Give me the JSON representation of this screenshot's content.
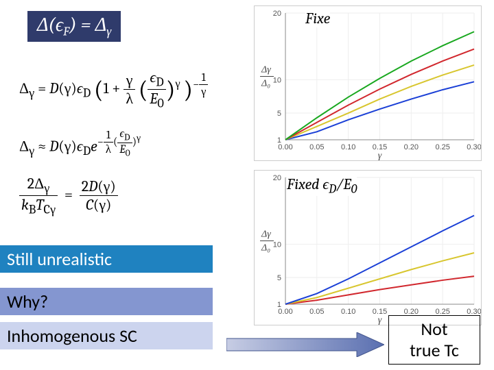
{
  "eq_box": "Δ(ε_F) = Δ_γ",
  "formula1": "Δγ = D(γ)εD (1 + γ/λ (εD/E0)^γ)^(-1/γ)",
  "formula2": "Δγ ≈ D(γ)εD e^{-1/λ (εD/E0)^γ}",
  "formula3": "2Δγ / (kB T_Cγ) = 2D(γ) / C(γ)",
  "banners": {
    "b1": "Still unrealistic",
    "b2": "Why?",
    "b3": "Inhomogenous SC"
  },
  "chart1": {
    "title": "Fixe",
    "x_ticks": [
      "0.00",
      "0.05",
      "0.10",
      "0.15",
      "0.20",
      "0.25",
      "0.30"
    ],
    "y_ticks": [
      "1",
      "5",
      "10",
      "20"
    ],
    "ylabel": "Δγ/Δ0",
    "xlabel": "γ",
    "series": [
      {
        "color": "#1a3fd6",
        "pts": [
          [
            0,
            1
          ],
          [
            0.05,
            2.2
          ],
          [
            0.1,
            4.0
          ],
          [
            0.15,
            5.6
          ],
          [
            0.2,
            7.1
          ],
          [
            0.25,
            8.5
          ],
          [
            0.3,
            9.7
          ]
        ]
      },
      {
        "color": "#d8c62e",
        "pts": [
          [
            0,
            1
          ],
          [
            0.05,
            3.0
          ],
          [
            0.1,
            5.0
          ],
          [
            0.15,
            7.1
          ],
          [
            0.2,
            9.0
          ],
          [
            0.25,
            10.7
          ],
          [
            0.3,
            12.2
          ]
        ]
      },
      {
        "color": "#d1272d",
        "pts": [
          [
            0,
            1
          ],
          [
            0.05,
            3.6
          ],
          [
            0.1,
            6.2
          ],
          [
            0.15,
            8.6
          ],
          [
            0.2,
            10.8
          ],
          [
            0.25,
            12.8
          ],
          [
            0.3,
            14.6
          ]
        ]
      },
      {
        "color": "#19a81f",
        "pts": [
          [
            0,
            1
          ],
          [
            0.05,
            4.3
          ],
          [
            0.1,
            7.4
          ],
          [
            0.15,
            10.2
          ],
          [
            0.2,
            12.8
          ],
          [
            0.25,
            15.1
          ],
          [
            0.3,
            17.2
          ]
        ]
      }
    ],
    "xlim": [
      0,
      0.3
    ],
    "ylim": [
      1,
      20
    ]
  },
  "chart2": {
    "title": "Fixed ε_D/E_0",
    "x_ticks": [
      "0.00",
      "0.05",
      "0.10",
      "0.15",
      "0.20",
      "0.25",
      "0.30"
    ],
    "y_ticks": [
      "1",
      "5",
      "10",
      "20"
    ],
    "ylabel": "Δγ/Δ0",
    "xlabel": "γ",
    "series": [
      {
        "color": "#d1272d",
        "pts": [
          [
            0,
            1
          ],
          [
            0.05,
            1.6
          ],
          [
            0.1,
            2.4
          ],
          [
            0.15,
            3.2
          ],
          [
            0.2,
            3.9
          ],
          [
            0.25,
            4.6
          ],
          [
            0.3,
            5.2
          ]
        ]
      },
      {
        "color": "#d8c62e",
        "pts": [
          [
            0,
            1
          ],
          [
            0.05,
            2.0
          ],
          [
            0.1,
            3.4
          ],
          [
            0.15,
            4.8
          ],
          [
            0.2,
            6.2
          ],
          [
            0.25,
            7.5
          ],
          [
            0.3,
            8.7
          ]
        ]
      },
      {
        "color": "#1a3fd6",
        "pts": [
          [
            0,
            1
          ],
          [
            0.05,
            2.6
          ],
          [
            0.1,
            4.8
          ],
          [
            0.15,
            7.2
          ],
          [
            0.2,
            9.6
          ],
          [
            0.25,
            12.0
          ],
          [
            0.3,
            14.3
          ]
        ]
      }
    ],
    "xlim": [
      0,
      0.3
    ],
    "ylim": [
      1,
      20
    ]
  },
  "not_box": {
    "line1": "Not",
    "line2": "true Tc"
  }
}
